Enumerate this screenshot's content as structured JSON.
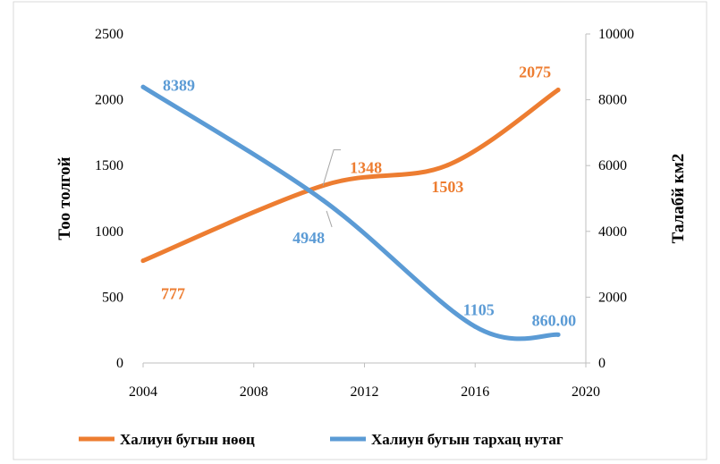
{
  "chart_data": {
    "type": "line",
    "xlim": [
      2004,
      2020
    ],
    "x_ticks": [
      "2004",
      "2008",
      "2012",
      "2016",
      "2020"
    ],
    "y_left": {
      "label": "Тоо толгой",
      "lim": [
        0,
        2500
      ],
      "ticks": [
        "0",
        "500",
        "1000",
        "1500",
        "2000",
        "2500"
      ]
    },
    "y_right": {
      "label": "Талабй км2",
      "lim": [
        0,
        10000
      ],
      "ticks": [
        "0",
        "2000",
        "4000",
        "6000",
        "8000",
        "10000"
      ]
    },
    "grid": false,
    "legend_position": "bottom",
    "series": [
      {
        "name": "Халиун бугын нөөц",
        "axis": "left",
        "color": "#ed7d31",
        "x": [
          2004,
          2010.5,
          2015,
          2019
        ],
        "values": [
          777,
          1348,
          1503,
          2075
        ],
        "labels": [
          "777",
          "1348",
          "1503",
          "2075"
        ]
      },
      {
        "name": "Халиун бугын тархац нутаг",
        "axis": "right",
        "color": "#5b9bd5",
        "x": [
          2004,
          2010.5,
          2016,
          2019
        ],
        "values": [
          8389,
          4948,
          1105,
          860
        ],
        "labels": [
          "8389",
          "4948",
          "1105",
          "860.00"
        ]
      }
    ]
  }
}
